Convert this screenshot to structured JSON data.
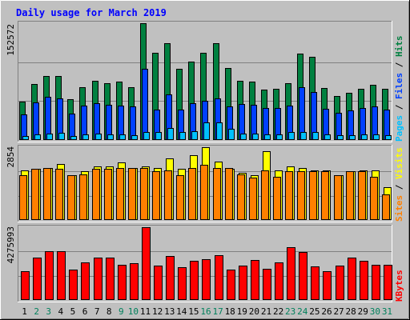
{
  "chart_data": [
    {
      "type": "bar",
      "title": "Daily usage for March 2019",
      "y_axis_max_label": "152572",
      "right_label": {
        "pages": "Pages",
        "files": "Files",
        "hits": "Hits",
        "sep": " / "
      },
      "categories": [
        "1",
        "2",
        "3",
        "4",
        "5",
        "6",
        "7",
        "8",
        "9",
        "10",
        "11",
        "12",
        "13",
        "14",
        "15",
        "16",
        "17",
        "18",
        "19",
        "20",
        "21",
        "22",
        "23",
        "24",
        "25",
        "26",
        "27",
        "28",
        "29",
        "30",
        "31"
      ],
      "ylim": [
        0,
        152572
      ],
      "series": [
        {
          "name": "Hits",
          "color": "#008040",
          "values": [
            50000,
            73000,
            84000,
            84000,
            53000,
            69000,
            77000,
            74000,
            76000,
            69000,
            152572,
            114000,
            126000,
            93000,
            102000,
            114000,
            126000,
            94000,
            77000,
            76000,
            66000,
            67000,
            74000,
            113000,
            109000,
            68000,
            57000,
            62000,
            67000,
            72000,
            67000
          ]
        },
        {
          "name": "Files",
          "color": "#0040ff",
          "values": [
            33000,
            49000,
            56000,
            54000,
            35000,
            45000,
            48000,
            46000,
            45000,
            44000,
            93000,
            40000,
            60000,
            40000,
            48000,
            51000,
            54000,
            44000,
            47000,
            46000,
            42000,
            42000,
            45000,
            69000,
            63000,
            41000,
            36000,
            39000,
            42000,
            44000,
            40000
          ]
        },
        {
          "name": "Pages",
          "color": "#00c0ff",
          "values": [
            5000,
            7000,
            8000,
            9000,
            5000,
            7000,
            8000,
            7000,
            7000,
            6000,
            10000,
            10000,
            16000,
            10000,
            11000,
            23000,
            23000,
            15000,
            8000,
            8000,
            7000,
            7000,
            10000,
            10000,
            10000,
            7000,
            6000,
            6000,
            7000,
            7000,
            6000
          ]
        }
      ]
    },
    {
      "type": "bar",
      "y_axis_max_label": "2854",
      "right_label": {
        "sites": "Sites",
        "visits": "Visits",
        "sep": " / "
      },
      "categories": [
        "1",
        "2",
        "3",
        "4",
        "5",
        "6",
        "7",
        "8",
        "9",
        "10",
        "11",
        "12",
        "13",
        "14",
        "15",
        "16",
        "17",
        "18",
        "19",
        "20",
        "21",
        "22",
        "23",
        "24",
        "25",
        "26",
        "27",
        "28",
        "29",
        "30",
        "31"
      ],
      "ylim": [
        0,
        2854
      ],
      "series": [
        {
          "name": "Visits",
          "color": "#ffff00",
          "values": [
            1950,
            2000,
            2050,
            2200,
            1750,
            1900,
            2100,
            2100,
            2250,
            2050,
            2100,
            2050,
            2400,
            2000,
            2550,
            2854,
            2300,
            2000,
            1850,
            1750,
            2700,
            1950,
            2100,
            2050,
            1950,
            1950,
            1750,
            1900,
            1950,
            1950,
            1300
          ]
        },
        {
          "name": "Sites",
          "color": "#ff8000",
          "values": [
            1750,
            2000,
            2050,
            2000,
            1750,
            1800,
            2000,
            2000,
            2050,
            2050,
            2050,
            1900,
            1950,
            1750,
            2050,
            2150,
            2050,
            2050,
            1800,
            1650,
            1950,
            1700,
            1900,
            1900,
            1900,
            1900,
            1750,
            1900,
            1900,
            1700,
            1000
          ]
        }
      ]
    },
    {
      "type": "bar",
      "y_axis_max_label": "4275993",
      "right_label": {
        "kbytes": "KBytes"
      },
      "categories": [
        "1",
        "2",
        "3",
        "4",
        "5",
        "6",
        "7",
        "8",
        "9",
        "10",
        "11",
        "12",
        "13",
        "14",
        "15",
        "16",
        "17",
        "18",
        "19",
        "20",
        "21",
        "22",
        "23",
        "24",
        "25",
        "26",
        "27",
        "28",
        "29",
        "30",
        "31"
      ],
      "ylim": [
        0,
        4275993
      ],
      "series": [
        {
          "name": "KBytes",
          "color": "#ff0000",
          "values": [
            1700000,
            2480000,
            2870000,
            2870000,
            1770000,
            2220000,
            2480000,
            2480000,
            2090000,
            2160000,
            4275993,
            2020000,
            2600000,
            1950000,
            2290000,
            2410000,
            2620000,
            1770000,
            2020000,
            2360000,
            1840000,
            2230000,
            3120000,
            2810000,
            1980000,
            1690000,
            2000000,
            2470000,
            2290000,
            2080000,
            2090000
          ]
        }
      ]
    }
  ],
  "x_labels": {
    "days": [
      "1",
      "2",
      "3",
      "4",
      "5",
      "6",
      "7",
      "8",
      "9",
      "10",
      "11",
      "12",
      "13",
      "14",
      "15",
      "16",
      "17",
      "18",
      "19",
      "20",
      "21",
      "22",
      "23",
      "24",
      "25",
      "26",
      "27",
      "28",
      "29",
      "30",
      "31"
    ],
    "weekend_days": [
      "2",
      "3",
      "9",
      "10",
      "16",
      "17",
      "23",
      "24",
      "30",
      "31"
    ],
    "weekday_color": "#000000",
    "weekend_color": "#00805c"
  },
  "colors": {
    "title": "#0000ff",
    "panel_bg": "#c0c0c0",
    "grid": "#808080",
    "axis_label": "#000000"
  }
}
